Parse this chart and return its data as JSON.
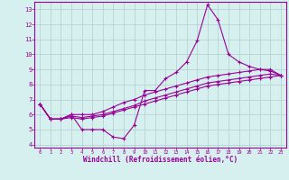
{
  "xlabel": "Windchill (Refroidissement éolien,°C)",
  "background_color": "#d6f0ef",
  "grid_color": "#b0cece",
  "line_color": "#990099",
  "x_ticks": [
    0,
    1,
    2,
    3,
    4,
    5,
    6,
    7,
    8,
    9,
    10,
    11,
    12,
    13,
    14,
    15,
    16,
    17,
    18,
    19,
    20,
    21,
    22,
    23
  ],
  "y_ticks": [
    4,
    5,
    6,
    7,
    8,
    9,
    10,
    11,
    12,
    13
  ],
  "ylim": [
    3.8,
    13.5
  ],
  "xlim": [
    -0.5,
    23.5
  ],
  "series1_x": [
    0,
    1,
    2,
    3,
    4,
    5,
    6,
    7,
    8,
    9,
    10,
    11,
    12,
    13,
    14,
    15,
    16,
    17,
    18,
    19,
    20,
    21,
    22,
    23
  ],
  "series1_y": [
    6.7,
    5.7,
    5.7,
    6.0,
    5.0,
    5.0,
    5.0,
    4.5,
    4.4,
    5.3,
    7.6,
    7.6,
    8.4,
    8.8,
    9.5,
    10.9,
    13.3,
    12.3,
    10.0,
    9.5,
    9.2,
    9.0,
    8.9,
    8.6
  ],
  "series2_x": [
    0,
    1,
    2,
    3,
    4,
    5,
    6,
    7,
    8,
    9,
    10,
    11,
    12,
    13,
    14,
    15,
    16,
    17,
    18,
    19,
    20,
    21,
    22,
    23
  ],
  "series2_y": [
    6.7,
    5.7,
    5.7,
    6.0,
    6.0,
    6.0,
    6.2,
    6.5,
    6.8,
    7.0,
    7.3,
    7.5,
    7.7,
    7.9,
    8.1,
    8.3,
    8.5,
    8.6,
    8.7,
    8.8,
    8.9,
    9.0,
    9.0,
    8.6
  ],
  "series3_x": [
    0,
    1,
    2,
    3,
    4,
    5,
    6,
    7,
    8,
    9,
    10,
    11,
    12,
    13,
    14,
    15,
    16,
    17,
    18,
    19,
    20,
    21,
    22,
    23
  ],
  "series3_y": [
    6.7,
    5.7,
    5.7,
    5.9,
    5.8,
    5.9,
    6.0,
    6.2,
    6.4,
    6.6,
    6.9,
    7.1,
    7.3,
    7.5,
    7.7,
    7.9,
    8.1,
    8.2,
    8.3,
    8.4,
    8.5,
    8.6,
    8.7,
    8.6
  ],
  "series4_x": [
    0,
    1,
    2,
    3,
    4,
    5,
    6,
    7,
    8,
    9,
    10,
    11,
    12,
    13,
    14,
    15,
    16,
    17,
    18,
    19,
    20,
    21,
    22,
    23
  ],
  "series4_y": [
    6.7,
    5.7,
    5.7,
    5.8,
    5.7,
    5.8,
    5.9,
    6.1,
    6.3,
    6.5,
    6.7,
    6.9,
    7.1,
    7.3,
    7.5,
    7.7,
    7.9,
    8.0,
    8.1,
    8.2,
    8.3,
    8.4,
    8.5,
    8.6
  ],
  "lw": 0.8,
  "ms": 2.5,
  "tick_fontsize": 5.0,
  "xlabel_fontsize": 5.5
}
